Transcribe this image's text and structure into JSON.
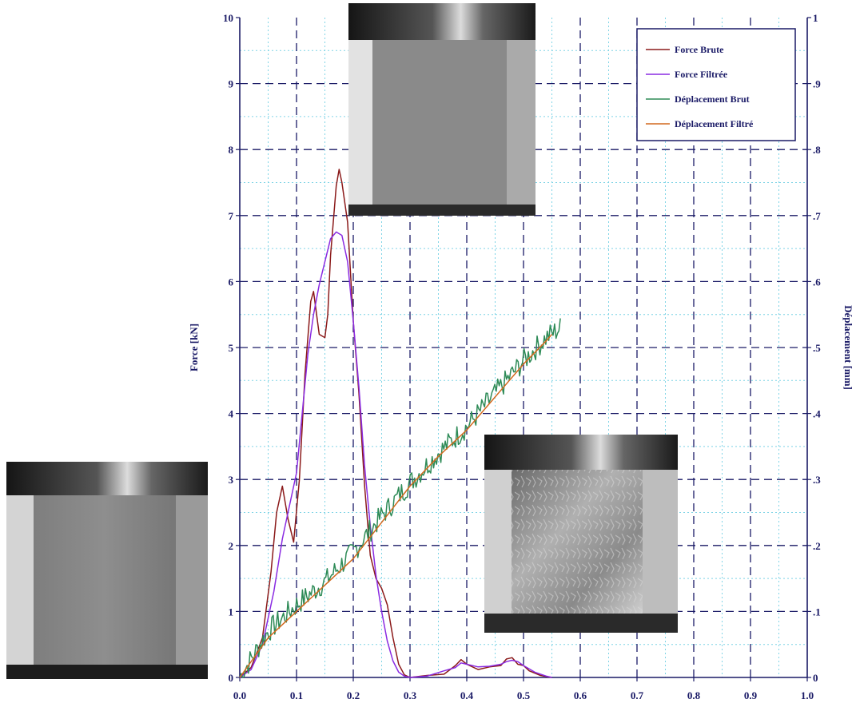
{
  "chart_data": {
    "type": "line",
    "xlim": [
      0,
      1.0
    ],
    "x_ticks": [
      "0.0",
      "0.1",
      "0.2",
      "0.3",
      "0.4",
      "0.5",
      "0.6",
      "0.7",
      "0.8",
      "0.9",
      "1.0"
    ],
    "y_left": {
      "label": "Force [kN]",
      "lim": [
        0,
        10
      ],
      "ticks": [
        "0",
        "1",
        "2",
        "3",
        "4",
        "5",
        "6",
        "7",
        "8",
        "9",
        "10"
      ]
    },
    "y_right": {
      "label": "Déplacement [mm]",
      "lim": [
        0,
        1
      ],
      "ticks": [
        "0",
        ".1",
        ".2",
        ".3",
        ".4",
        ".5",
        ".6",
        ".7",
        ".8",
        ".9",
        "1"
      ]
    },
    "grid": true,
    "legend_position": "top-right",
    "series": [
      {
        "name": "Force Brute",
        "axis": "left",
        "color": "#8b1a1a",
        "points": [
          [
            0.0,
            0.0
          ],
          [
            0.02,
            0.15
          ],
          [
            0.04,
            0.6
          ],
          [
            0.055,
            1.6
          ],
          [
            0.065,
            2.5
          ],
          [
            0.075,
            2.9
          ],
          [
            0.085,
            2.4
          ],
          [
            0.095,
            2.05
          ],
          [
            0.105,
            3.0
          ],
          [
            0.115,
            4.6
          ],
          [
            0.125,
            5.7
          ],
          [
            0.13,
            5.85
          ],
          [
            0.14,
            5.2
          ],
          [
            0.15,
            5.15
          ],
          [
            0.155,
            5.5
          ],
          [
            0.16,
            6.4
          ],
          [
            0.17,
            7.45
          ],
          [
            0.175,
            7.7
          ],
          [
            0.18,
            7.5
          ],
          [
            0.19,
            6.9
          ],
          [
            0.2,
            5.4
          ],
          [
            0.21,
            4.3
          ],
          [
            0.22,
            2.9
          ],
          [
            0.23,
            1.85
          ],
          [
            0.24,
            1.5
          ],
          [
            0.25,
            1.35
          ],
          [
            0.26,
            1.1
          ],
          [
            0.27,
            0.6
          ],
          [
            0.28,
            0.2
          ],
          [
            0.29,
            0.04
          ],
          [
            0.3,
            0.0
          ],
          [
            0.33,
            0.03
          ],
          [
            0.36,
            0.05
          ],
          [
            0.38,
            0.18
          ],
          [
            0.39,
            0.27
          ],
          [
            0.4,
            0.2
          ],
          [
            0.42,
            0.12
          ],
          [
            0.44,
            0.16
          ],
          [
            0.46,
            0.18
          ],
          [
            0.47,
            0.28
          ],
          [
            0.48,
            0.3
          ],
          [
            0.49,
            0.2
          ],
          [
            0.5,
            0.18
          ],
          [
            0.51,
            0.1
          ],
          [
            0.53,
            0.03
          ],
          [
            0.55,
            0.0
          ]
        ]
      },
      {
        "name": "Force Filtrée",
        "axis": "left",
        "color": "#8a2be2",
        "points": [
          [
            0.0,
            0.0
          ],
          [
            0.02,
            0.12
          ],
          [
            0.04,
            0.5
          ],
          [
            0.06,
            1.3
          ],
          [
            0.075,
            2.1
          ],
          [
            0.09,
            2.7
          ],
          [
            0.1,
            3.1
          ],
          [
            0.11,
            4.0
          ],
          [
            0.12,
            4.9
          ],
          [
            0.13,
            5.5
          ],
          [
            0.14,
            5.95
          ],
          [
            0.15,
            6.3
          ],
          [
            0.16,
            6.65
          ],
          [
            0.17,
            6.75
          ],
          [
            0.18,
            6.7
          ],
          [
            0.19,
            6.3
          ],
          [
            0.2,
            5.4
          ],
          [
            0.21,
            4.4
          ],
          [
            0.22,
            3.2
          ],
          [
            0.23,
            2.3
          ],
          [
            0.24,
            1.55
          ],
          [
            0.25,
            1.0
          ],
          [
            0.26,
            0.55
          ],
          [
            0.27,
            0.25
          ],
          [
            0.28,
            0.08
          ],
          [
            0.29,
            0.02
          ],
          [
            0.3,
            0.0
          ],
          [
            0.33,
            0.02
          ],
          [
            0.36,
            0.1
          ],
          [
            0.38,
            0.15
          ],
          [
            0.39,
            0.22
          ],
          [
            0.4,
            0.2
          ],
          [
            0.42,
            0.16
          ],
          [
            0.44,
            0.17
          ],
          [
            0.46,
            0.2
          ],
          [
            0.47,
            0.24
          ],
          [
            0.48,
            0.26
          ],
          [
            0.49,
            0.24
          ],
          [
            0.5,
            0.18
          ],
          [
            0.52,
            0.08
          ],
          [
            0.54,
            0.02
          ],
          [
            0.55,
            0.0
          ]
        ]
      },
      {
        "name": "Déplacement Brut",
        "axis": "right",
        "color": "#2e8b57",
        "noise": 0.018,
        "points": [
          [
            0.0,
            0.0
          ],
          [
            0.05,
            0.07
          ],
          [
            0.1,
            0.11
          ],
          [
            0.15,
            0.145
          ],
          [
            0.2,
            0.19
          ],
          [
            0.25,
            0.245
          ],
          [
            0.3,
            0.295
          ],
          [
            0.35,
            0.34
          ],
          [
            0.4,
            0.38
          ],
          [
            0.45,
            0.43
          ],
          [
            0.5,
            0.48
          ],
          [
            0.54,
            0.515
          ],
          [
            0.565,
            0.53
          ]
        ]
      },
      {
        "name": "Déplacement Filtré",
        "axis": "right",
        "color": "#d2691e",
        "points": [
          [
            0.0,
            0.0
          ],
          [
            0.05,
            0.06
          ],
          [
            0.1,
            0.1
          ],
          [
            0.15,
            0.14
          ],
          [
            0.2,
            0.18
          ],
          [
            0.25,
            0.235
          ],
          [
            0.3,
            0.29
          ],
          [
            0.35,
            0.335
          ],
          [
            0.4,
            0.375
          ],
          [
            0.45,
            0.425
          ],
          [
            0.5,
            0.475
          ],
          [
            0.54,
            0.51
          ],
          [
            0.55,
            0.52
          ]
        ]
      }
    ]
  }
}
